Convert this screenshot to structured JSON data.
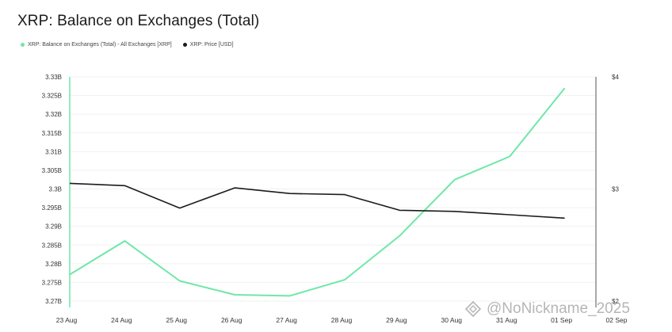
{
  "chart_data": {
    "type": "line",
    "title": "XRP: Balance on Exchanges (Total)",
    "categories": [
      "23 Aug",
      "24 Aug",
      "25 Aug",
      "26 Aug",
      "27 Aug",
      "28 Aug",
      "29 Aug",
      "30 Aug",
      "31 Aug",
      "01 Sep",
      "02 Sep"
    ],
    "left_axis": {
      "ticks": [
        "3.33B",
        "3.325B",
        "3.32B",
        "3.315B",
        "3.31B",
        "3.305B",
        "3.3B",
        "3.295B",
        "3.29B",
        "3.285B",
        "3.28B",
        "3.275B",
        "3.27B"
      ],
      "ylim": [
        3.27,
        3.33
      ]
    },
    "right_axis": {
      "ticks": [
        "$4",
        "$3",
        "$2"
      ],
      "ylim": [
        2,
        4
      ]
    },
    "series": [
      {
        "name": "XRP: Balance on Exchanges (Total) - All Exchanges [XRP]",
        "color": "#6ee7a8",
        "axis": "left",
        "x": [
          0,
          1,
          2,
          3,
          4,
          5,
          6,
          7,
          8,
          9
        ],
        "values": [
          3.2771,
          3.2861,
          3.2754,
          3.2717,
          3.2714,
          3.2757,
          3.2875,
          3.3025,
          3.3087,
          3.327
        ]
      },
      {
        "name": "XRP: Price [USD]",
        "color": "#1b1b1b",
        "axis": "right",
        "x": [
          0,
          1,
          2,
          3,
          4,
          5,
          6,
          7,
          8,
          9
        ],
        "values": [
          3.05,
          3.03,
          2.83,
          3.01,
          2.96,
          2.95,
          2.81,
          2.8,
          2.77,
          2.74
        ]
      }
    ]
  },
  "watermark": {
    "text": "@NoNickname_2025",
    "icon": "diamond-logo-icon"
  }
}
